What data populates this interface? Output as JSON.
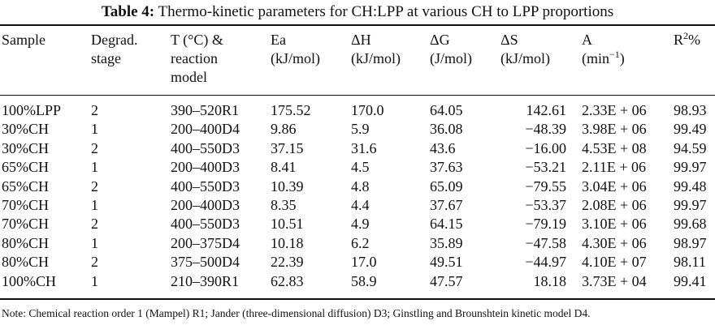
{
  "caption": {
    "label": "Table 4:",
    "text": " Thermo-kinetic parameters for CH:LPP at various CH to LPP proportions"
  },
  "headers": {
    "sample": "Sample",
    "stage": "Degrad.\nstage",
    "temp": "T (°C) &\nreaction\nmodel",
    "ea": "Ea\n(kJ/mol)",
    "dh": "ΔH\n(kJ/mol)",
    "dg": "ΔG\n(J/mol)",
    "ds": "ΔS\n(kJ/mol)",
    "a_base": "A\n(min",
    "a_sup": "−1",
    "a_close": ")",
    "r2_base": "R",
    "r2_sup": "2",
    "r2_tail": "%"
  },
  "rows": [
    [
      "100%LPP",
      "2",
      "390–520R1",
      "175.52",
      "170.0",
      "64.05",
      "142.61",
      "2.33E + 06",
      "98.93"
    ],
    [
      "30%CH",
      "1",
      "200–400D4",
      "9.86",
      "5.9",
      "36.08",
      "−48.39",
      "3.98E + 06",
      "99.49"
    ],
    [
      "30%CH",
      "2",
      "400–550D3",
      "37.15",
      "31.6",
      "43.6",
      "−16.00",
      "4.53E + 08",
      "94.59"
    ],
    [
      "65%CH",
      "1",
      "200–400D3",
      "8.41",
      "4.5",
      "37.63",
      "−53.21",
      "2.11E + 06",
      "99.97"
    ],
    [
      "65%CH",
      "2",
      "400–550D3",
      "10.39",
      "4.8",
      "65.09",
      "−79.55",
      "3.04E + 06",
      "99.48"
    ],
    [
      "70%CH",
      "1",
      "200–400D3",
      "8.35",
      "4.4",
      "37.67",
      "−53.37",
      "2.08E + 06",
      "99.97"
    ],
    [
      "70%CH",
      "2",
      "400–550D3",
      "10.51",
      "4.9",
      "64.15",
      "−79.19",
      "3.10E + 06",
      "99.68"
    ],
    [
      "80%CH",
      "1",
      "200–375D4",
      "10.18",
      "6.2",
      "35.89",
      "−47.58",
      "4.30E + 06",
      "98.97"
    ],
    [
      "80%CH",
      "2",
      "375–500D4",
      "22.39",
      "17.0",
      "49.51",
      "−44.97",
      "4.10E + 07",
      "98.11"
    ],
    [
      "100%CH",
      "1",
      "210–390R1",
      "62.83",
      "58.9",
      "47.57",
      "18.18",
      "3.73E + 04",
      "99.41"
    ]
  ],
  "note": "Note: Chemical reaction order 1 (Mampel) R1; Jander (three-dimensional diffusion) D3; Ginstling and Brounshtein kinetic model D4."
}
